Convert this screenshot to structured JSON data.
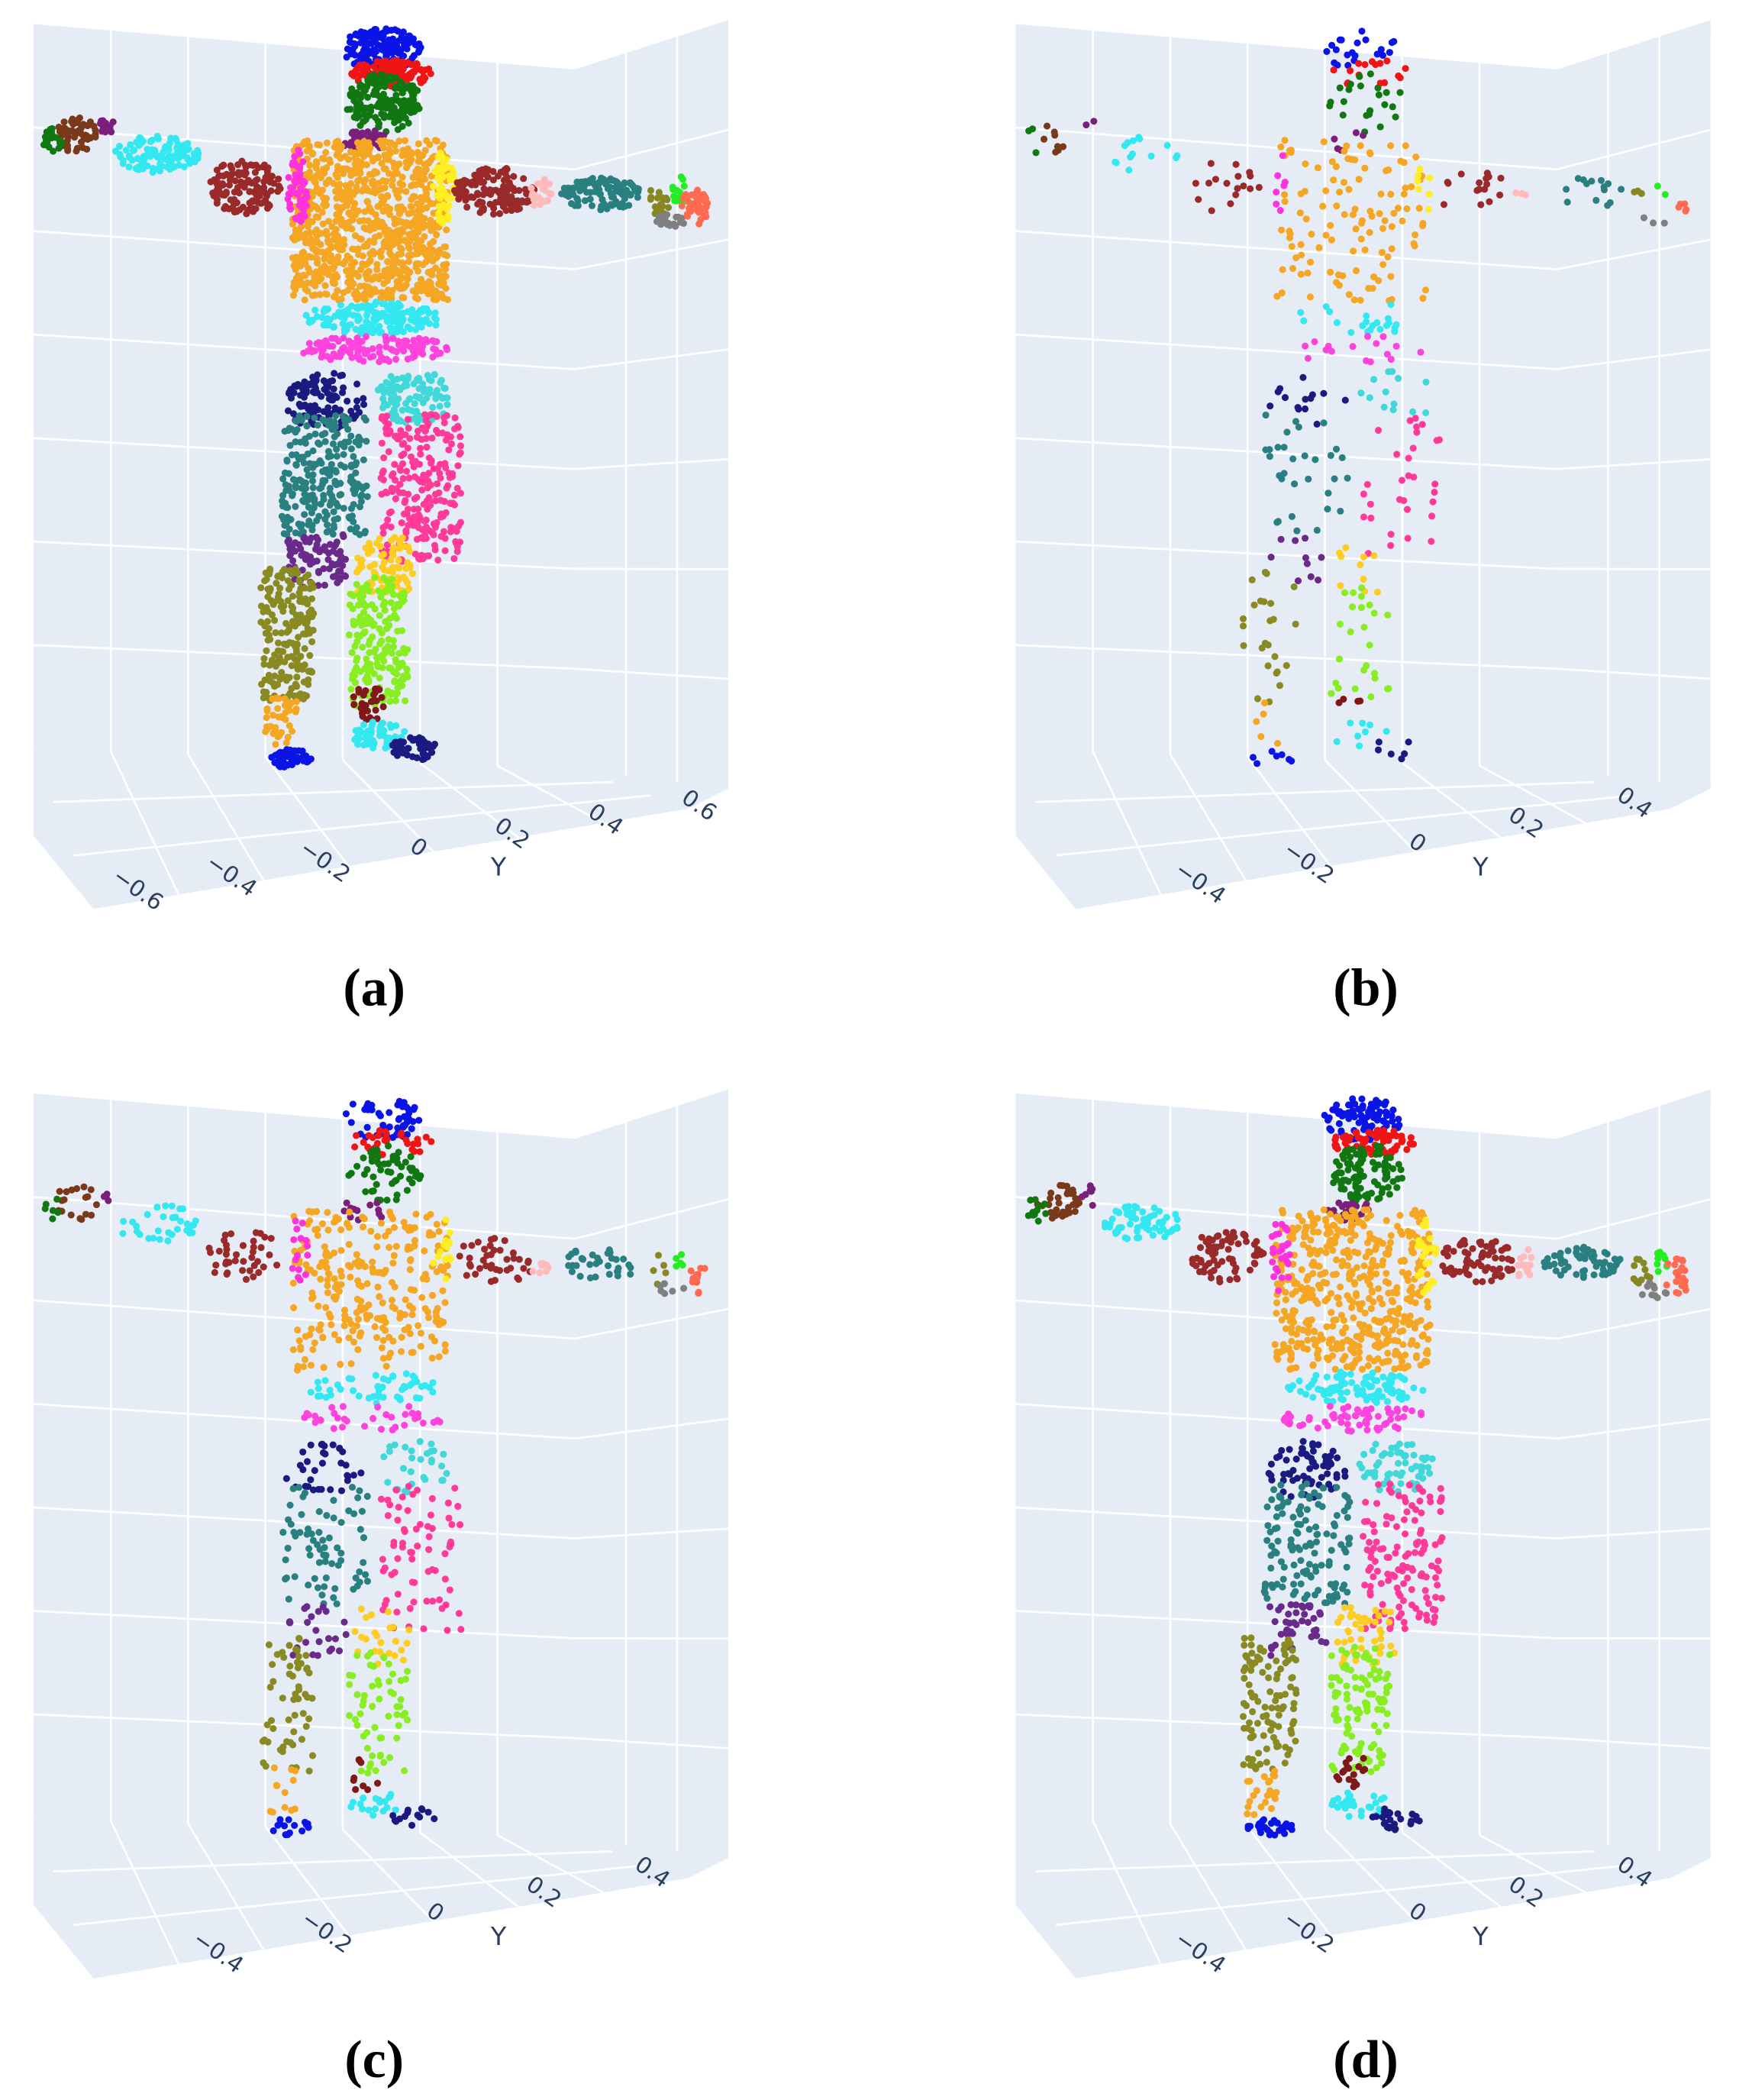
{
  "panels": [
    {
      "caption": "(a)",
      "axis_title": "Y",
      "ticks": [
        "−0.6",
        "−0.4",
        "−0.2",
        "0",
        "0.2",
        "0.4",
        "0.6"
      ]
    },
    {
      "caption": "(b)",
      "axis_title": "Y",
      "ticks": [
        "−0.4",
        "−0.2",
        "0",
        "0.2",
        "0.4"
      ]
    },
    {
      "caption": "(c)",
      "axis_title": "Y",
      "ticks": [
        "−0.4",
        "−0.2",
        "0",
        "0.2",
        "0.4"
      ]
    },
    {
      "caption": "(d)",
      "axis_title": "Y",
      "ticks": [
        "−0.4",
        "−0.2",
        "0",
        "0.2",
        "0.4"
      ]
    }
  ]
}
